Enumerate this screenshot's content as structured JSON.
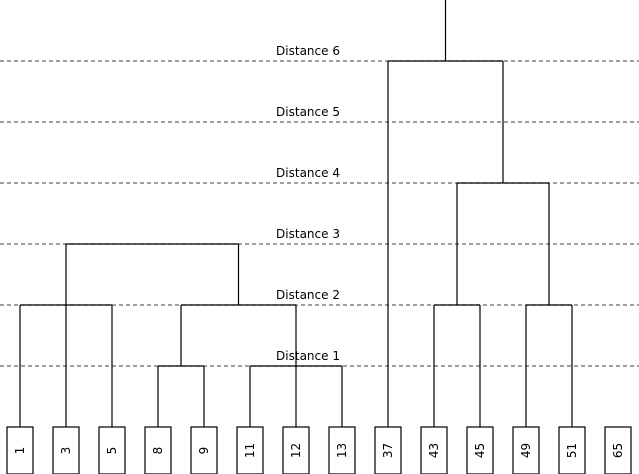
{
  "distance_labels": [
    "Distance 1",
    "Distance 2",
    "Distance 3",
    "Distance 4",
    "Distance 5",
    "Distance 6"
  ],
  "leaves": [
    "1",
    "3",
    "5",
    "8",
    "9",
    "11",
    "12",
    "13",
    "37",
    "43",
    "45",
    "49",
    "51",
    "65"
  ],
  "merges": [
    {
      "children": [
        "8",
        "9"
      ],
      "level": 1
    },
    {
      "children": [
        "11",
        "12",
        "13"
      ],
      "level": 1
    },
    {
      "children": [
        "1",
        "3",
        "5"
      ],
      "level": 2
    },
    {
      "children": [
        "m0",
        "m1"
      ],
      "level": 2
    },
    {
      "children": [
        "43",
        "45"
      ],
      "level": 2
    },
    {
      "children": [
        "49",
        "51"
      ],
      "level": 2
    },
    {
      "children": [
        "m2",
        "m3"
      ],
      "level": 3
    },
    {
      "children": [
        "m4",
        "m5"
      ],
      "level": 4
    },
    {
      "children": [
        "37",
        "m7"
      ],
      "level": 6
    }
  ],
  "root_merge": "m8"
}
